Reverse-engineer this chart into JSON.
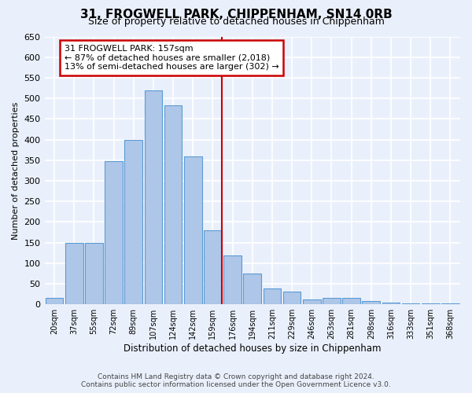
{
  "title": "31, FROGWELL PARK, CHIPPENHAM, SN14 0RB",
  "subtitle": "Size of property relative to detached houses in Chippenham",
  "xlabel": "Distribution of detached houses by size in Chippenham",
  "ylabel": "Number of detached properties",
  "categories": [
    "20sqm",
    "37sqm",
    "55sqm",
    "72sqm",
    "89sqm",
    "107sqm",
    "124sqm",
    "142sqm",
    "159sqm",
    "176sqm",
    "194sqm",
    "211sqm",
    "229sqm",
    "246sqm",
    "263sqm",
    "281sqm",
    "298sqm",
    "316sqm",
    "333sqm",
    "351sqm",
    "368sqm"
  ],
  "values": [
    15,
    150,
    150,
    348,
    400,
    520,
    483,
    360,
    180,
    118,
    75,
    38,
    30,
    12,
    15,
    15,
    8,
    5,
    3,
    3,
    3
  ],
  "bar_color": "#aec6e8",
  "bar_edge_color": "#5b9bd5",
  "property_bar_index": 8,
  "annotation_title": "31 FROGWELL PARK: 157sqm",
  "annotation_line1": "← 87% of detached houses are smaller (2,018)",
  "annotation_line2": "13% of semi-detached houses are larger (302) →",
  "annotation_box_edgecolor": "#cc0000",
  "vline_color": "#cc0000",
  "background_color": "#eaf0fb",
  "grid_color": "#ffffff",
  "ylim_max": 650,
  "yticks": [
    0,
    50,
    100,
    150,
    200,
    250,
    300,
    350,
    400,
    450,
    500,
    550,
    600,
    650
  ],
  "footnote1": "Contains HM Land Registry data © Crown copyright and database right 2024.",
  "footnote2": "Contains public sector information licensed under the Open Government Licence v3.0."
}
